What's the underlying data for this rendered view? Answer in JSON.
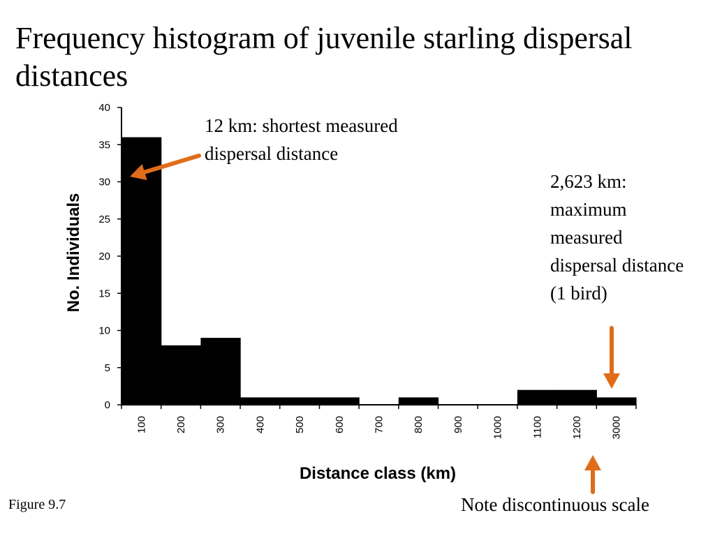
{
  "slide": {
    "title": "Frequency histogram of juvenile starling dispersal distances",
    "annotation_min": "12 km: shortest measured dispersal distance",
    "annotation_max": "2,623 km: maximum measured dispersal distance (1 bird)",
    "figure_label": "Figure 9.7",
    "scale_note": "Note discontinuous scale"
  },
  "colors": {
    "bars": "#000000",
    "arrows": "#E06C1A"
  },
  "chart_data": {
    "type": "bar",
    "title": "",
    "xlabel": "Distance class (km)",
    "ylabel": "No. Individuals",
    "categories": [
      "100",
      "200",
      "300",
      "400",
      "500",
      "600",
      "700",
      "800",
      "900",
      "1000",
      "1100",
      "1200",
      "3000"
    ],
    "values": [
      36,
      8,
      9,
      1,
      1,
      1,
      0,
      1,
      0,
      0,
      2,
      2,
      1
    ],
    "ylim": [
      0,
      40
    ],
    "yticks": [
      0,
      5,
      10,
      15,
      20,
      25,
      30,
      35,
      40
    ],
    "grid": false,
    "legend": "none"
  }
}
